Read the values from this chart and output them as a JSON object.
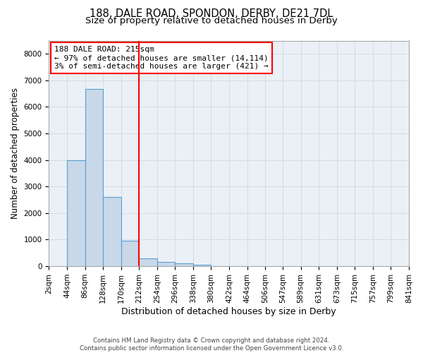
{
  "title1": "188, DALE ROAD, SPONDON, DERBY, DE21 7DL",
  "title2": "Size of property relative to detached houses in Derby",
  "xlabel": "Distribution of detached houses by size in Derby",
  "ylabel": "Number of detached properties",
  "bin_edges": [
    2,
    44,
    86,
    128,
    170,
    212,
    254,
    296,
    338,
    380,
    422,
    464,
    506,
    547,
    589,
    631,
    673,
    715,
    757,
    799,
    841
  ],
  "bar_heights": [
    0,
    3980,
    6680,
    2600,
    950,
    300,
    150,
    110,
    50,
    10,
    5,
    5,
    5,
    0,
    0,
    0,
    0,
    0,
    0,
    0
  ],
  "bar_color": "#c8d8e8",
  "bar_edge_color": "#5a9fd4",
  "vline_x": 212,
  "vline_color": "red",
  "annotation_text": "188 DALE ROAD: 215sqm\n← 97% of detached houses are smaller (14,114)\n3% of semi-detached houses are larger (421) →",
  "annotation_box_color": "red",
  "ylim": [
    0,
    8500
  ],
  "yticks": [
    0,
    1000,
    2000,
    3000,
    4000,
    5000,
    6000,
    7000,
    8000
  ],
  "bg_color": "#eaf0f6",
  "grid_color": "#d0d8e0",
  "footer": "Contains HM Land Registry data © Crown copyright and database right 2024.\nContains public sector information licensed under the Open Government Licence v3.0.",
  "title1_fontsize": 10.5,
  "title2_fontsize": 9.5,
  "xlabel_fontsize": 9,
  "ylabel_fontsize": 8.5,
  "tick_fontsize": 7.5,
  "annot_fontsize": 8
}
